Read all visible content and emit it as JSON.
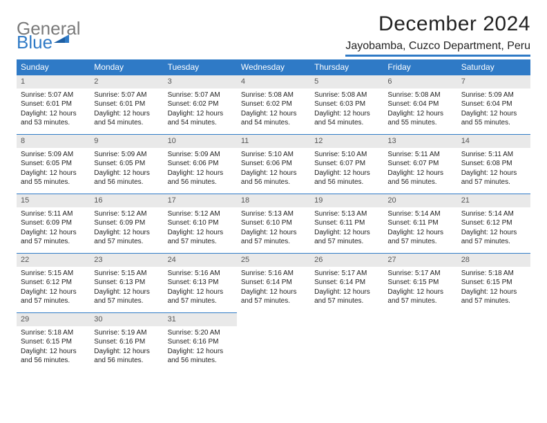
{
  "logo": {
    "line1": "General",
    "line2": "Blue",
    "mark_color": "#2f7ac6",
    "line1_color": "#7a7a7a"
  },
  "title": "December 2024",
  "location": "Jayobamba, Cuzco Department, Peru",
  "header_bg": "#2f7ac6",
  "header_fg": "#ffffff",
  "daybar_bg": "#e9e9e9",
  "rule_color": "#2f7ac6",
  "weekdays": [
    "Sunday",
    "Monday",
    "Tuesday",
    "Wednesday",
    "Thursday",
    "Friday",
    "Saturday"
  ],
  "weeks": [
    [
      {
        "n": 1,
        "sr": "5:07 AM",
        "ss": "6:01 PM",
        "dl": "12 hours and 53 minutes."
      },
      {
        "n": 2,
        "sr": "5:07 AM",
        "ss": "6:01 PM",
        "dl": "12 hours and 54 minutes."
      },
      {
        "n": 3,
        "sr": "5:07 AM",
        "ss": "6:02 PM",
        "dl": "12 hours and 54 minutes."
      },
      {
        "n": 4,
        "sr": "5:08 AM",
        "ss": "6:02 PM",
        "dl": "12 hours and 54 minutes."
      },
      {
        "n": 5,
        "sr": "5:08 AM",
        "ss": "6:03 PM",
        "dl": "12 hours and 54 minutes."
      },
      {
        "n": 6,
        "sr": "5:08 AM",
        "ss": "6:04 PM",
        "dl": "12 hours and 55 minutes."
      },
      {
        "n": 7,
        "sr": "5:09 AM",
        "ss": "6:04 PM",
        "dl": "12 hours and 55 minutes."
      }
    ],
    [
      {
        "n": 8,
        "sr": "5:09 AM",
        "ss": "6:05 PM",
        "dl": "12 hours and 55 minutes."
      },
      {
        "n": 9,
        "sr": "5:09 AM",
        "ss": "6:05 PM",
        "dl": "12 hours and 56 minutes."
      },
      {
        "n": 10,
        "sr": "5:09 AM",
        "ss": "6:06 PM",
        "dl": "12 hours and 56 minutes."
      },
      {
        "n": 11,
        "sr": "5:10 AM",
        "ss": "6:06 PM",
        "dl": "12 hours and 56 minutes."
      },
      {
        "n": 12,
        "sr": "5:10 AM",
        "ss": "6:07 PM",
        "dl": "12 hours and 56 minutes."
      },
      {
        "n": 13,
        "sr": "5:11 AM",
        "ss": "6:07 PM",
        "dl": "12 hours and 56 minutes."
      },
      {
        "n": 14,
        "sr": "5:11 AM",
        "ss": "6:08 PM",
        "dl": "12 hours and 57 minutes."
      }
    ],
    [
      {
        "n": 15,
        "sr": "5:11 AM",
        "ss": "6:09 PM",
        "dl": "12 hours and 57 minutes."
      },
      {
        "n": 16,
        "sr": "5:12 AM",
        "ss": "6:09 PM",
        "dl": "12 hours and 57 minutes."
      },
      {
        "n": 17,
        "sr": "5:12 AM",
        "ss": "6:10 PM",
        "dl": "12 hours and 57 minutes."
      },
      {
        "n": 18,
        "sr": "5:13 AM",
        "ss": "6:10 PM",
        "dl": "12 hours and 57 minutes."
      },
      {
        "n": 19,
        "sr": "5:13 AM",
        "ss": "6:11 PM",
        "dl": "12 hours and 57 minutes."
      },
      {
        "n": 20,
        "sr": "5:14 AM",
        "ss": "6:11 PM",
        "dl": "12 hours and 57 minutes."
      },
      {
        "n": 21,
        "sr": "5:14 AM",
        "ss": "6:12 PM",
        "dl": "12 hours and 57 minutes."
      }
    ],
    [
      {
        "n": 22,
        "sr": "5:15 AM",
        "ss": "6:12 PM",
        "dl": "12 hours and 57 minutes."
      },
      {
        "n": 23,
        "sr": "5:15 AM",
        "ss": "6:13 PM",
        "dl": "12 hours and 57 minutes."
      },
      {
        "n": 24,
        "sr": "5:16 AM",
        "ss": "6:13 PM",
        "dl": "12 hours and 57 minutes."
      },
      {
        "n": 25,
        "sr": "5:16 AM",
        "ss": "6:14 PM",
        "dl": "12 hours and 57 minutes."
      },
      {
        "n": 26,
        "sr": "5:17 AM",
        "ss": "6:14 PM",
        "dl": "12 hours and 57 minutes."
      },
      {
        "n": 27,
        "sr": "5:17 AM",
        "ss": "6:15 PM",
        "dl": "12 hours and 57 minutes."
      },
      {
        "n": 28,
        "sr": "5:18 AM",
        "ss": "6:15 PM",
        "dl": "12 hours and 57 minutes."
      }
    ],
    [
      {
        "n": 29,
        "sr": "5:18 AM",
        "ss": "6:15 PM",
        "dl": "12 hours and 56 minutes."
      },
      {
        "n": 30,
        "sr": "5:19 AM",
        "ss": "6:16 PM",
        "dl": "12 hours and 56 minutes."
      },
      {
        "n": 31,
        "sr": "5:20 AM",
        "ss": "6:16 PM",
        "dl": "12 hours and 56 minutes."
      },
      null,
      null,
      null,
      null
    ]
  ],
  "labels": {
    "sunrise": "Sunrise:",
    "sunset": "Sunset:",
    "daylight": "Daylight:"
  }
}
